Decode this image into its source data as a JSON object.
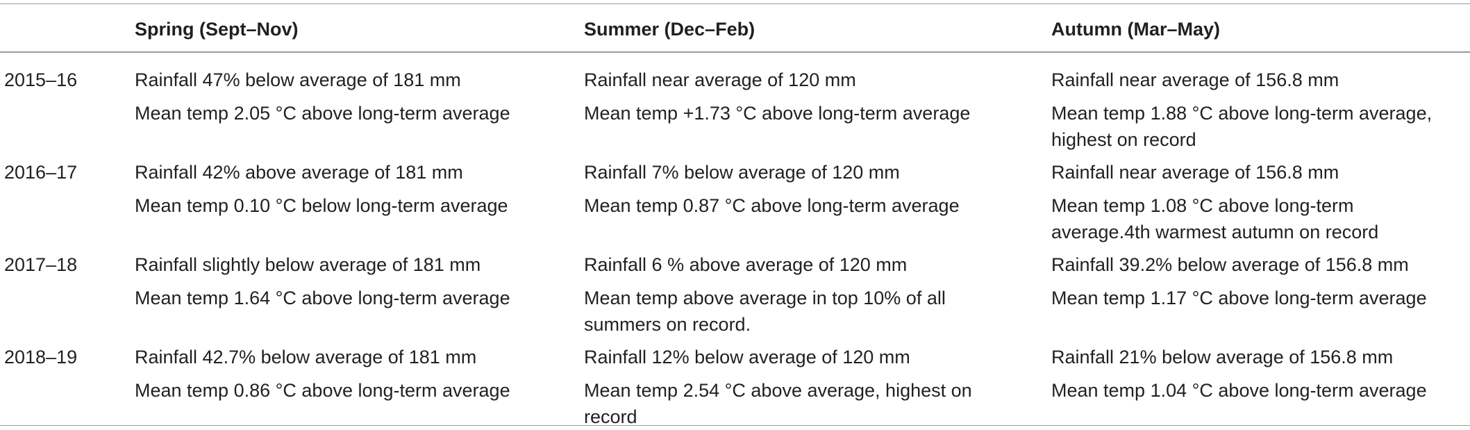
{
  "headers": [
    "",
    "Spring (Sept–Nov)",
    "Summer (Dec–Feb)",
    "Autumn (Mar–May)"
  ],
  "rows": [
    {
      "year": "2015–16",
      "spring": [
        "Rainfall 47% below average of 181 mm",
        "Mean temp 2.05 °C above long-term average"
      ],
      "summer": [
        "Rainfall near average of 120 mm",
        "Mean temp +1.73 °C above long-term average"
      ],
      "autumn": [
        "Rainfall near average of 156.8 mm",
        "Mean temp 1.88 °C above long-term average,",
        "highest on record"
      ]
    },
    {
      "year": "2016–17",
      "spring": [
        "Rainfall 42% above average of 181 mm",
        "Mean temp 0.10 °C below long-term average"
      ],
      "summer": [
        "Rainfall 7% below average of 120 mm",
        "Mean temp 0.87 °C above long-term average"
      ],
      "autumn": [
        "Rainfall near average of 156.8 mm",
        "Mean temp 1.08 °C above long-term",
        "average.4th warmest autumn on record"
      ]
    },
    {
      "year": "2017–18",
      "spring": [
        "Rainfall slightly below average of 181 mm",
        "Mean temp 1.64 °C above long-term average"
      ],
      "summer": [
        "Rainfall 6 % above average of 120 mm",
        "Mean temp above average in top 10% of all",
        "summers on record."
      ],
      "autumn": [
        "Rainfall 39.2% below average of 156.8 mm",
        "Mean temp 1.17 °C above long-term average"
      ]
    },
    {
      "year": "2018–19",
      "spring": [
        "Rainfall 42.7% below average of 181 mm",
        "Mean temp 0.86 °C above long-term average"
      ],
      "summer": [
        "Rainfall 12% below average of 120 mm",
        "Mean temp 2.54 °C above average, highest on",
        "record"
      ],
      "autumn": [
        "Rainfall 21% below average of 156.8 mm",
        "Mean temp 1.04 °C above long-term average"
      ]
    }
  ]
}
